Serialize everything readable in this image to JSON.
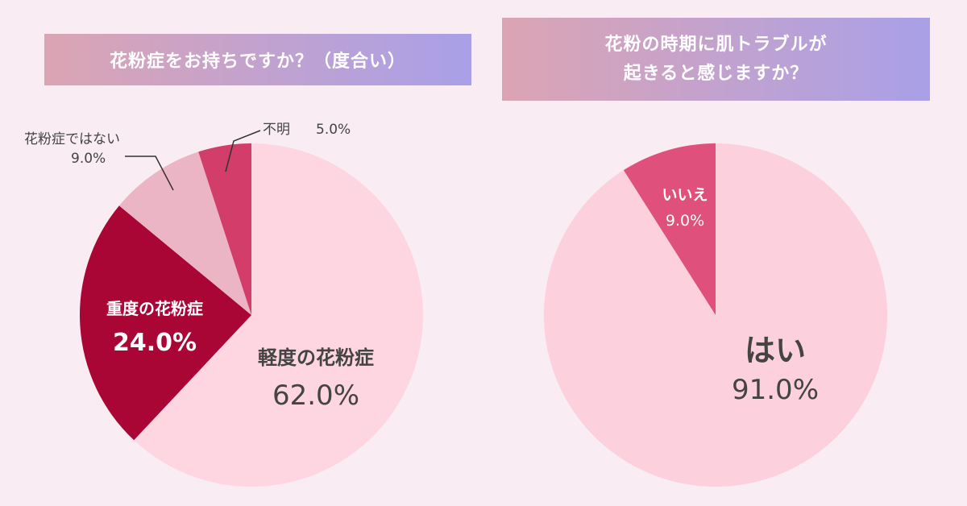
{
  "chart_data": [
    {
      "type": "pie",
      "title": "花粉症をお持ちですか？（度合い）",
      "slices": [
        {
          "label": "軽度の花粉症",
          "value": 62.0,
          "display": "62.0%",
          "color": "#fdd6e1"
        },
        {
          "label": "重度の花粉症",
          "value": 24.0,
          "display": "24.0%",
          "color": "#a90636"
        },
        {
          "label": "花粉症ではない",
          "value": 9.0,
          "display": "9.0%",
          "color": "#ecb5c6"
        },
        {
          "label": "不明",
          "value": 5.0,
          "display": "5.0%",
          "color": "#d33d69"
        }
      ]
    },
    {
      "type": "pie",
      "title_lines": [
        "花粉の時期に肌トラブルが",
        "起きると感じますか？"
      ],
      "slices": [
        {
          "label": "はい",
          "value": 91.0,
          "display": "91.0%",
          "color": "#fdd0dd"
        },
        {
          "label": "いいえ",
          "value": 9.0,
          "display": "9.0%",
          "color": "#e0507c"
        }
      ]
    }
  ]
}
